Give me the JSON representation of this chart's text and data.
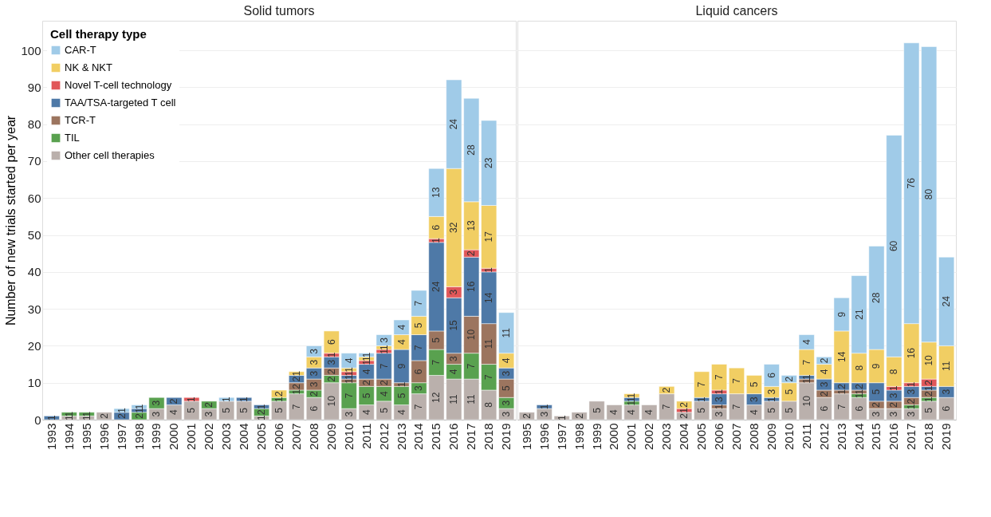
{
  "chart_data": [
    {
      "type": "bar",
      "title": "Solid tumors",
      "ylabel": "Number of new trials started per year",
      "legend_title": "Cell therapy type",
      "legend": "top left",
      "stacked": true,
      "data_labels": true,
      "grid": "y",
      "categories": [
        "1993",
        "1994",
        "1995",
        "1996",
        "1997",
        "1998",
        "1999",
        "2000",
        "2001",
        "2002",
        "2003",
        "2004",
        "2005",
        "2006",
        "2007",
        "2008",
        "2009",
        "2010",
        "2011",
        "2012",
        "2013",
        "2014",
        "2015",
        "2016",
        "2017",
        "2018",
        "2019"
      ],
      "ylim": [
        0,
        108
      ],
      "yticks": [
        0,
        10,
        20,
        30,
        40,
        50,
        60,
        70,
        80,
        90,
        100
      ],
      "series": [
        {
          "name": "Other cell therapies",
          "color": "#bab0ac",
          "values": [
            null,
            1,
            1,
            2,
            null,
            null,
            3,
            4,
            5,
            3,
            5,
            5,
            1,
            5,
            7,
            6,
            10,
            3,
            4,
            5,
            4,
            7,
            12,
            11,
            11,
            8,
            3
          ]
        },
        {
          "name": "TIL",
          "color": "#59a14f",
          "values": [
            null,
            1,
            1,
            null,
            null,
            2,
            3,
            null,
            null,
            2,
            null,
            null,
            2,
            1,
            1,
            2,
            2,
            7,
            5,
            4,
            5,
            3,
            7,
            4,
            7,
            7,
            3
          ]
        },
        {
          "name": "TCR-T",
          "color": "#9c755f",
          "values": [
            null,
            null,
            null,
            null,
            null,
            null,
            null,
            null,
            null,
            null,
            null,
            null,
            null,
            null,
            2,
            3,
            2,
            1,
            2,
            2,
            1,
            6,
            5,
            3,
            10,
            11,
            5
          ]
        },
        {
          "name": "TAA/TSA-targeted T cell",
          "color": "#4e79a7",
          "values": [
            1,
            null,
            null,
            null,
            2,
            1,
            null,
            2,
            null,
            null,
            null,
            1,
            1,
            null,
            2,
            3,
            3,
            1,
            4,
            7,
            9,
            7,
            24,
            15,
            16,
            14,
            3
          ]
        },
        {
          "name": "Novel T-cell technology",
          "color": "#e15759",
          "values": [
            null,
            null,
            null,
            null,
            null,
            null,
            null,
            null,
            1,
            null,
            null,
            null,
            null,
            null,
            null,
            null,
            1,
            1,
            1,
            1,
            null,
            null,
            1,
            3,
            2,
            1,
            null
          ]
        },
        {
          "name": "NK & NKT",
          "color": "#f1ce63",
          "values": [
            null,
            null,
            null,
            null,
            null,
            null,
            null,
            null,
            null,
            null,
            null,
            null,
            null,
            2,
            1,
            3,
            6,
            1,
            1,
            1,
            4,
            5,
            6,
            32,
            13,
            17,
            4
          ]
        },
        {
          "name": "CAR-T",
          "color": "#a0cbe8",
          "values": [
            null,
            null,
            null,
            null,
            1,
            1,
            null,
            null,
            null,
            null,
            1,
            null,
            null,
            null,
            null,
            3,
            null,
            4,
            1,
            3,
            4,
            7,
            13,
            24,
            28,
            23,
            11
          ]
        }
      ]
    },
    {
      "type": "bar",
      "title": "Liquid cancers",
      "stacked": true,
      "data_labels": true,
      "grid": "y",
      "tick_labels": "x",
      "categories": [
        "1995",
        "1996",
        "1997",
        "1998",
        "1999",
        "2000",
        "2001",
        "2002",
        "2003",
        "2004",
        "2005",
        "2006",
        "2007",
        "2008",
        "2009",
        "2010",
        "2011",
        "2012",
        "2013",
        "2014",
        "2015",
        "2016",
        "2017",
        "2018",
        "2019"
      ],
      "ylim": [
        0,
        108
      ],
      "yticks": [
        0,
        10,
        20,
        30,
        40,
        50,
        60,
        70,
        80,
        90,
        100
      ],
      "series": [
        {
          "color": "#bab0ac",
          "values": [
            2,
            3,
            1,
            2,
            5,
            4,
            4,
            4,
            7,
            2,
            5,
            3,
            7,
            4,
            5,
            5,
            10,
            6,
            7,
            6,
            3,
            3,
            3,
            5,
            6
          ]
        },
        {
          "color": "#59a14f",
          "values": [
            null,
            null,
            null,
            null,
            null,
            null,
            1,
            null,
            null,
            null,
            null,
            null,
            null,
            null,
            null,
            null,
            null,
            null,
            null,
            1,
            null,
            null,
            1,
            1,
            null
          ]
        },
        {
          "color": "#9c755f",
          "values": [
            null,
            null,
            null,
            null,
            null,
            null,
            null,
            null,
            null,
            null,
            null,
            1,
            null,
            null,
            null,
            null,
            1,
            2,
            1,
            1,
            2,
            2,
            2,
            2,
            null
          ]
        },
        {
          "color": "#4e79a7",
          "values": [
            null,
            1,
            null,
            null,
            null,
            null,
            1,
            null,
            null,
            null,
            1,
            3,
            null,
            3,
            1,
            null,
            1,
            3,
            2,
            2,
            5,
            3,
            3,
            1,
            3
          ]
        },
        {
          "color": "#e15759",
          "values": [
            null,
            null,
            null,
            null,
            null,
            null,
            null,
            null,
            null,
            1,
            null,
            1,
            null,
            null,
            null,
            null,
            null,
            null,
            null,
            null,
            null,
            1,
            1,
            2,
            null
          ]
        },
        {
          "color": "#f1ce63",
          "values": [
            null,
            null,
            null,
            null,
            null,
            null,
            1,
            null,
            2,
            2,
            7,
            7,
            7,
            5,
            3,
            5,
            7,
            4,
            14,
            8,
            9,
            8,
            16,
            10,
            11
          ]
        },
        {
          "color": "#a0cbe8",
          "values": [
            null,
            null,
            null,
            null,
            null,
            null,
            null,
            null,
            null,
            null,
            null,
            null,
            null,
            null,
            6,
            2,
            4,
            2,
            9,
            21,
            28,
            60,
            76,
            80,
            24
          ]
        }
      ]
    }
  ]
}
